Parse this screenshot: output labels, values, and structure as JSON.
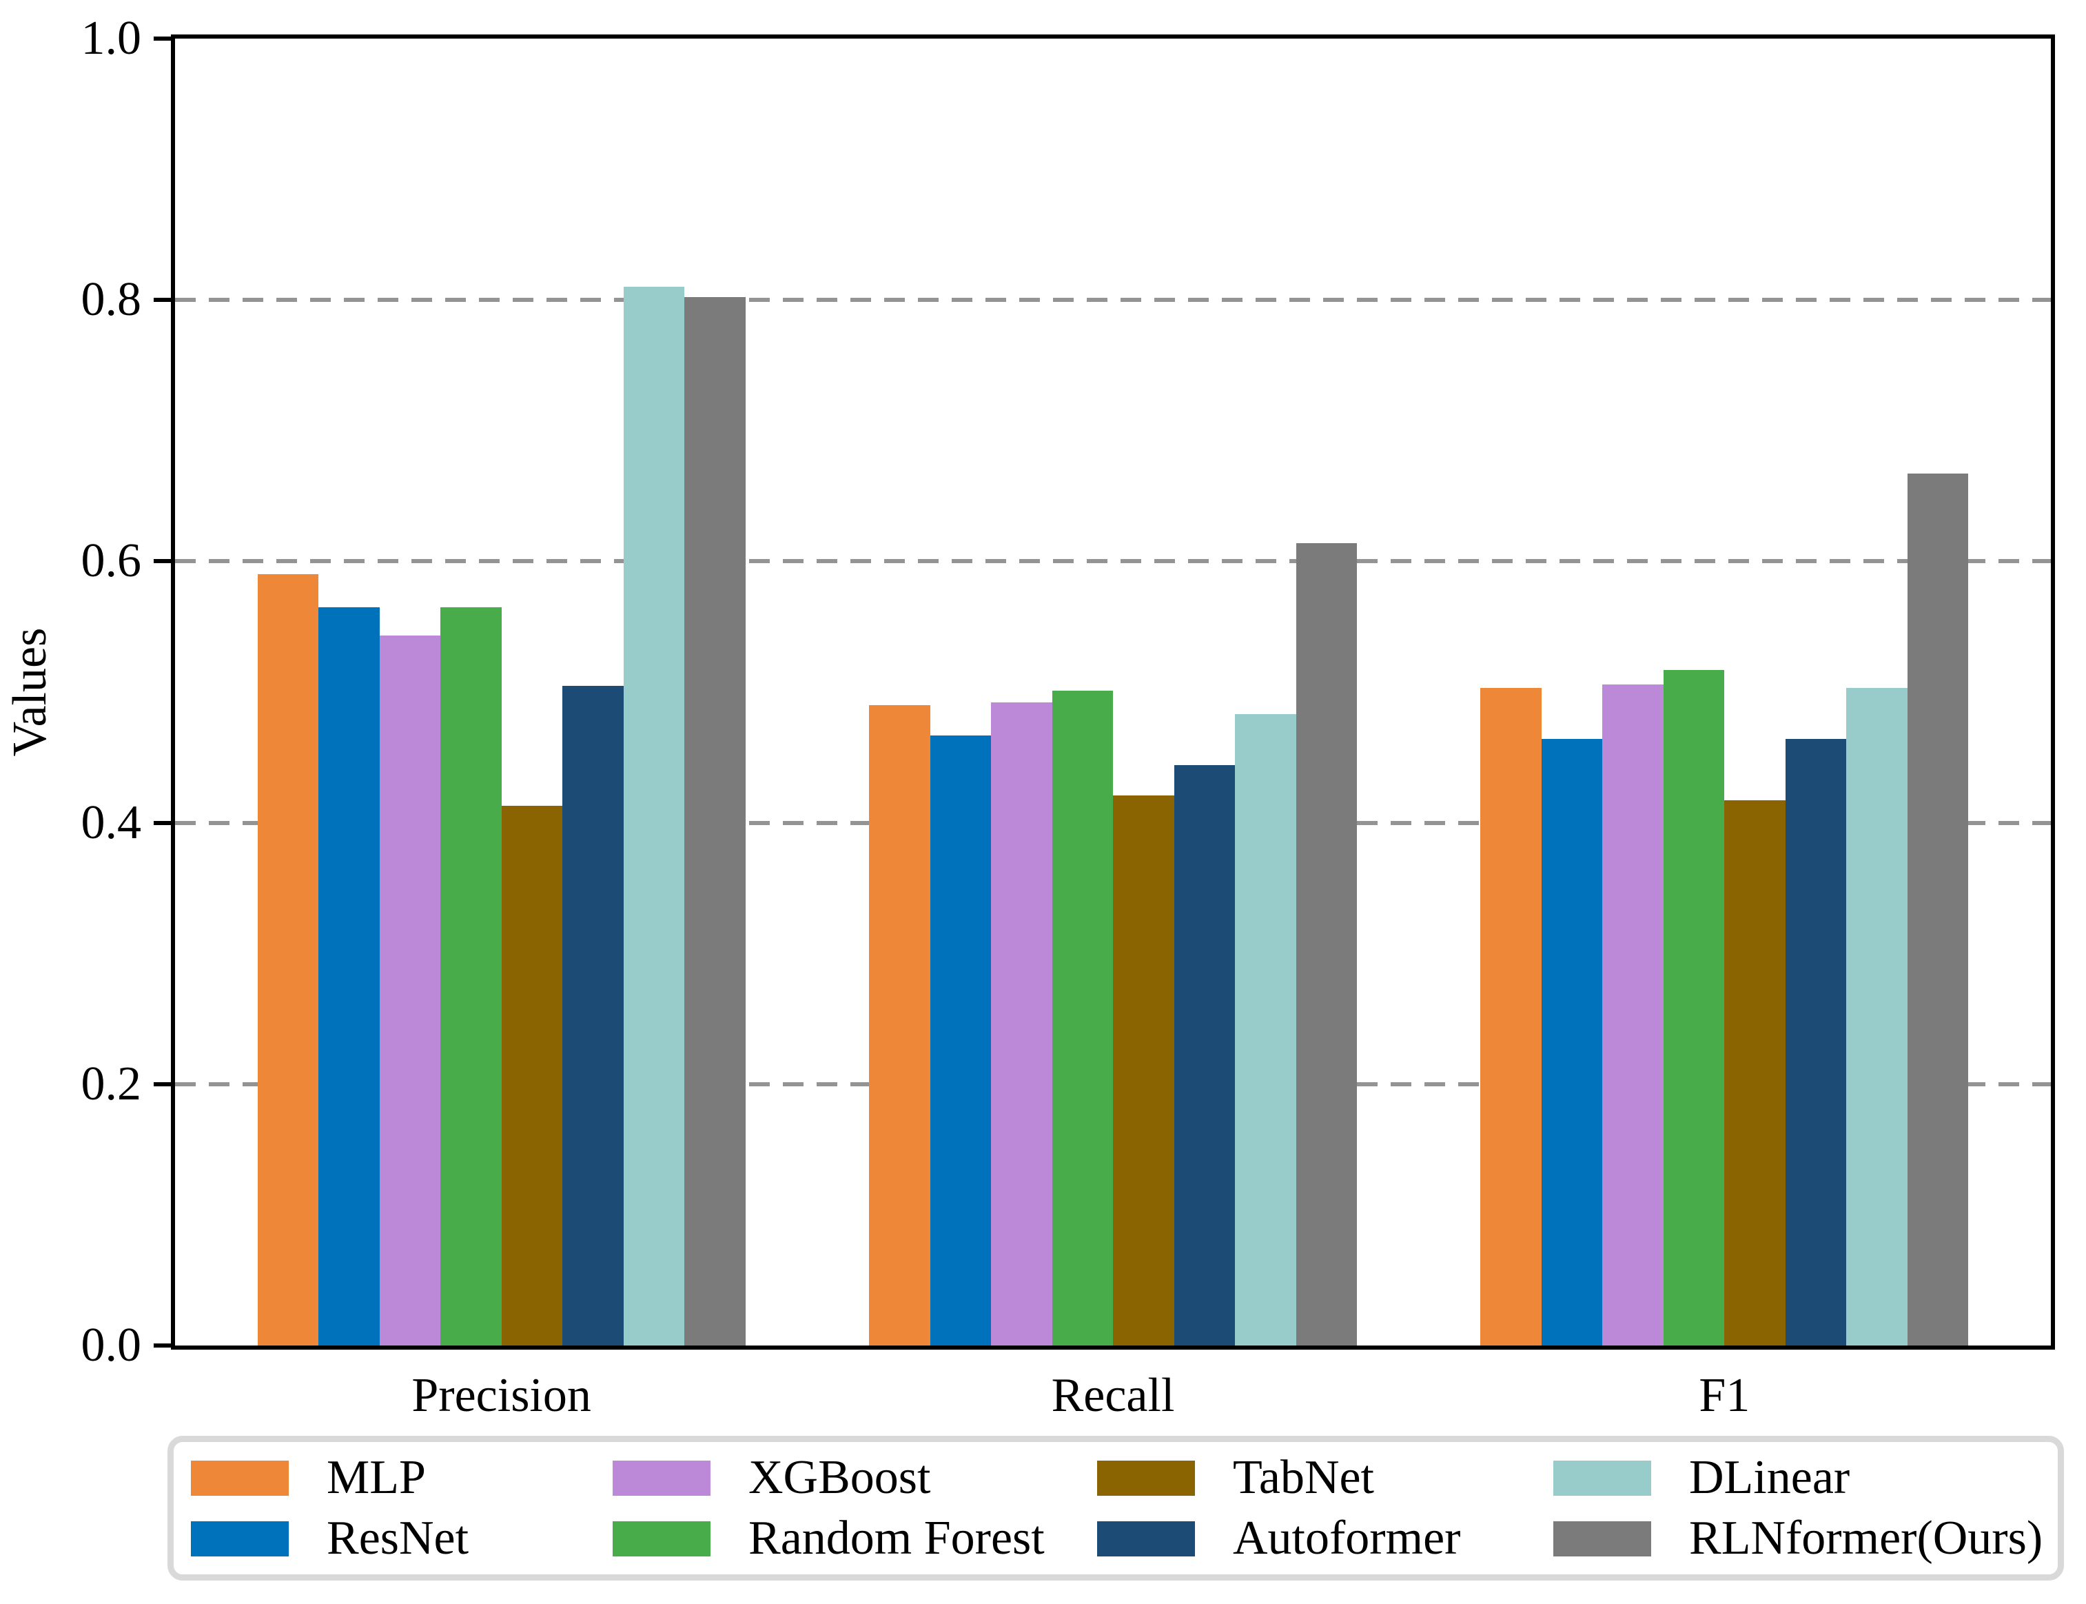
{
  "chart_data": {
    "type": "bar",
    "title": "",
    "ylabel": "Values",
    "categories": [
      "Precision",
      "Recall",
      "F1"
    ],
    "series": [
      {
        "name": "MLP",
        "color": "#ee8738",
        "values": [
          0.59,
          0.49,
          0.503
        ]
      },
      {
        "name": "ResNet",
        "color": "#0072bc",
        "values": [
          0.565,
          0.467,
          0.464
        ]
      },
      {
        "name": "XGBoost",
        "color": "#bc89d8",
        "values": [
          0.543,
          0.492,
          0.506
        ]
      },
      {
        "name": "Random Forest",
        "color": "#49ac4a",
        "values": [
          0.565,
          0.501,
          0.517
        ]
      },
      {
        "name": "TabNet",
        "color": "#8a6400",
        "values": [
          0.413,
          0.421,
          0.417
        ]
      },
      {
        "name": "Autoformer",
        "color": "#1c4c75",
        "values": [
          0.505,
          0.444,
          0.464
        ]
      },
      {
        "name": "DLinear",
        "color": "#97cccb",
        "values": [
          0.81,
          0.483,
          0.503
        ]
      },
      {
        "name": "RLNformer(Ours)",
        "color": "#7b7b7b",
        "values": [
          0.802,
          0.614,
          0.667
        ]
      }
    ],
    "ylim": [
      0.0,
      1.0
    ],
    "yticks": [
      "0.0",
      "0.2",
      "0.4",
      "0.6",
      "0.8",
      "1.0"
    ],
    "grid": "horizontal dashed at 0.2, 0.4, 0.6, 0.8",
    "grid_color": "#949494",
    "legend_position": "bottom",
    "legend_columns": 4,
    "legend_rows": 2
  }
}
